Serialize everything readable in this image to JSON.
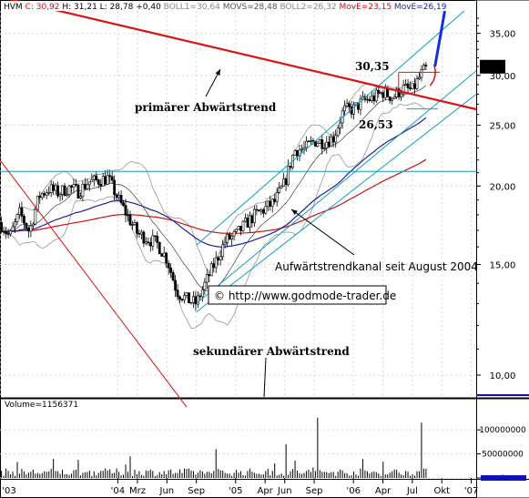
{
  "header": {
    "symbol": "HVM",
    "close": "C: 30,92",
    "high": "H: 31,21",
    "low": "L: 28,78",
    "change": "+0,40",
    "boll1": "BOLL1=30,64",
    "movs": "MOVS=28,48",
    "boll2": "BOLL2=26,32",
    "move1": "MovE=23,15",
    "move2": "MovE=26,19"
  },
  "annotations": {
    "primary_trend": "primärer Abwärtstrend",
    "secondary_trend": "sekundärer Abwärtstrend",
    "channel": "Aufwärtstrendkanal seit August 2004",
    "copyright": "© http://www.godmode-trader.de",
    "high_label": "30,35",
    "low_label": "26,53",
    "last_price": "30,92"
  },
  "volume": {
    "label": "Volume=1156371",
    "ticks": [
      "100000000",
      "50000000",
      "0"
    ],
    "ylim": [
      0,
      140000000
    ]
  },
  "chart_data": {
    "type": "candlestick",
    "title": "",
    "ylim": [
      9.2,
      38
    ],
    "log_scale": true,
    "y_ticks": [
      "35,00",
      "30,00",
      "25,00",
      "20,00",
      "15,00",
      "10,00"
    ],
    "y_tick_values": [
      35,
      30,
      25,
      20,
      15,
      10
    ],
    "x_ticks": [
      "'03",
      "'04",
      "Mrz",
      "Jun",
      "Sep",
      "'05",
      "Apr",
      "Jun",
      "Sep",
      "'06",
      "Apr",
      "Jul",
      "Okt",
      "'07"
    ],
    "x_tick_months": [
      0,
      12,
      14,
      17,
      20,
      24,
      27,
      29,
      32,
      36,
      39,
      42,
      45,
      48
    ],
    "series_colors": {
      "price": "#000000",
      "bollinger": "#a0a0a0",
      "movs": "#404040",
      "move_short": "#d01010",
      "move_long": "#2020a0",
      "trend": "#e01010",
      "channel": "#10a0c0",
      "horizontal": "#10a0c0"
    },
    "close_anchors": [
      [
        0,
        17.5
      ],
      [
        1,
        16.6
      ],
      [
        2,
        18.1
      ],
      [
        3,
        16.9
      ],
      [
        4,
        19.3
      ],
      [
        5,
        19.8
      ],
      [
        6,
        19.5
      ],
      [
        7,
        19.9
      ],
      [
        8,
        19.6
      ],
      [
        9,
        20.3
      ],
      [
        10,
        20.4
      ],
      [
        11,
        20.6
      ],
      [
        12,
        19.1
      ],
      [
        13,
        17.9
      ],
      [
        14,
        16.8
      ],
      [
        15,
        16.5
      ],
      [
        16,
        16.2
      ],
      [
        17,
        15.3
      ],
      [
        18,
        13.6
      ],
      [
        19,
        13.2
      ],
      [
        20,
        13.0
      ],
      [
        21,
        14.1
      ],
      [
        22,
        15.2
      ],
      [
        23,
        16.4
      ],
      [
        24,
        16.7
      ],
      [
        25,
        17.4
      ],
      [
        26,
        18.0
      ],
      [
        27,
        18.4
      ],
      [
        28,
        18.9
      ],
      [
        29,
        20.2
      ],
      [
        30,
        22.8
      ],
      [
        31,
        22.9
      ],
      [
        32,
        23.6
      ],
      [
        33,
        23.5
      ],
      [
        34,
        23.9
      ],
      [
        35,
        26.4
      ],
      [
        36,
        26.5
      ],
      [
        37,
        27.3
      ],
      [
        38,
        27.6
      ],
      [
        39,
        28.2
      ],
      [
        40,
        27.7
      ],
      [
        41,
        28.6
      ],
      [
        42,
        28.4
      ],
      [
        43,
        30.3
      ],
      [
        43.6,
        30.9
      ]
    ],
    "volume_spikes": [
      [
        12.8,
        28000000
      ],
      [
        13.3,
        45000000
      ],
      [
        21.9,
        60000000
      ],
      [
        29.1,
        70000000
      ],
      [
        32.4,
        125000000
      ],
      [
        42.9,
        115000000
      ],
      [
        44.0,
        30000000
      ]
    ],
    "trend_lines": {
      "primary": [
        [
          0,
          40.0
        ],
        [
          48.5,
          26.5
        ]
      ],
      "secondary": [
        [
          0,
          22.0
        ],
        [
          19,
          8.9
        ]
      ],
      "channel_lower": [
        [
          20,
          12.6
        ],
        [
          48.5,
          28.0
        ]
      ],
      "channel_mid": [
        [
          20,
          13.0
        ],
        [
          48.5,
          30.5
        ]
      ],
      "channel_upper": [
        [
          20,
          16.1
        ],
        [
          48.5,
          39.5
        ]
      ],
      "horizontal": 21.1,
      "high_level": 30.35,
      "low_level": 26.53,
      "forecast": [
        [
          44.3,
          31.0
        ],
        [
          45.3,
          38.0
        ]
      ]
    }
  }
}
